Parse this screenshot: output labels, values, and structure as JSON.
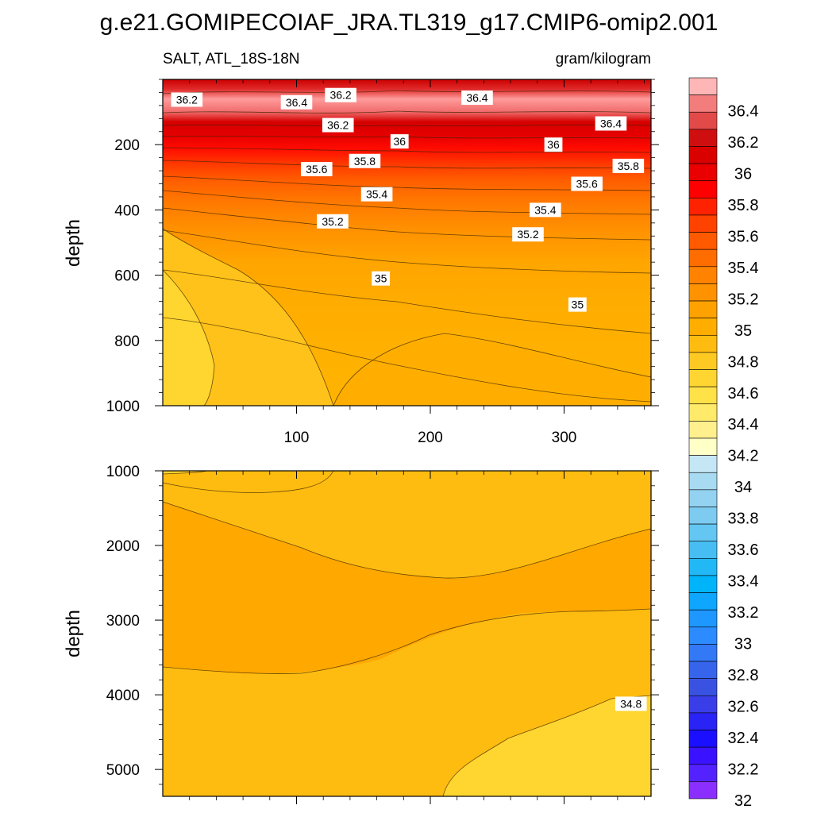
{
  "figure_title": "g.e21.GOMIPECOIAF_JRA.TL319_g17.CMIP6-omip2.001",
  "chart_data": [
    {
      "type": "contour",
      "panel": "upper",
      "title": "g.e21.GOMIPECOIAF_JRA.TL319_g17.CMIP6-omip2.001",
      "left_string": "SALT, ATL_18S-18N",
      "right_string": "gram/kilogram",
      "xlabel": "",
      "ylabel": "depth",
      "xlim": [
        0,
        365
      ],
      "ylim": [
        1000,
        0
      ],
      "x_ticks": [
        100,
        200,
        300
      ],
      "y_ticks": [
        200,
        400,
        600,
        800,
        1000
      ],
      "contour_labels": [
        {
          "text": "36.2",
          "x": 18,
          "y": 62
        },
        {
          "text": "36.4",
          "x": 100,
          "y": 70
        },
        {
          "text": "36.2",
          "x": 133,
          "y": 48
        },
        {
          "text": "36.4",
          "x": 235,
          "y": 56
        },
        {
          "text": "36.4",
          "x": 335,
          "y": 135
        },
        {
          "text": "36.2",
          "x": 131,
          "y": 140
        },
        {
          "text": "36",
          "x": 177,
          "y": 190
        },
        {
          "text": "36",
          "x": 292,
          "y": 200
        },
        {
          "text": "35.8",
          "x": 151,
          "y": 250
        },
        {
          "text": "35.8",
          "x": 348,
          "y": 265
        },
        {
          "text": "35.6",
          "x": 115,
          "y": 275
        },
        {
          "text": "35.6",
          "x": 317,
          "y": 320
        },
        {
          "text": "35.4",
          "x": 160,
          "y": 352
        },
        {
          "text": "35.4",
          "x": 286,
          "y": 400
        },
        {
          "text": "35.2",
          "x": 127,
          "y": 435
        },
        {
          "text": "35.2",
          "x": 273,
          "y": 475
        },
        {
          "text": "35",
          "x": 163,
          "y": 610
        },
        {
          "text": "35",
          "x": 310,
          "y": 690
        }
      ],
      "salinity_rows": [
        {
          "depth": 0,
          "values": [
            36.3,
            36.4,
            36.5,
            36.4,
            36.4
          ]
        },
        {
          "depth": 100,
          "values": [
            36.2,
            36.2,
            36.2,
            36.2,
            36.2
          ]
        },
        {
          "depth": 200,
          "values": [
            35.9,
            36.0,
            36.0,
            36.0,
            36.0
          ]
        },
        {
          "depth": 300,
          "values": [
            35.5,
            35.6,
            35.7,
            35.7,
            35.7
          ]
        },
        {
          "depth": 400,
          "values": [
            35.2,
            35.3,
            35.4,
            35.4,
            35.5
          ]
        },
        {
          "depth": 500,
          "values": [
            34.9,
            35.1,
            35.2,
            35.3,
            35.3
          ]
        },
        {
          "depth": 600,
          "values": [
            34.7,
            34.9,
            35.0,
            35.1,
            35.2
          ]
        },
        {
          "depth": 800,
          "values": [
            34.6,
            34.8,
            34.9,
            34.9,
            35.0
          ]
        },
        {
          "depth": 1000,
          "values": [
            34.6,
            34.7,
            34.8,
            34.8,
            34.8
          ]
        }
      ]
    },
    {
      "type": "contour",
      "panel": "lower",
      "xlabel": "",
      "ylabel": "depth",
      "xlim": [
        0,
        365
      ],
      "ylim": [
        5360,
        1000
      ],
      "y_ticks": [
        1000,
        2000,
        3000,
        4000,
        5000
      ],
      "contour_labels": [
        {
          "text": "34.8",
          "x": 350,
          "y": 4120
        }
      ],
      "regions": [
        {
          "range": "34.8-35.0",
          "depth_from": 1600,
          "depth_to": 3700
        },
        {
          "range": "34.6-34.8",
          "depth_from": 3700,
          "depth_to": 5360
        }
      ]
    }
  ],
  "colorbar": {
    "labels": [
      "36.4",
      "36.2",
      "36",
      "35.8",
      "35.6",
      "35.4",
      "35.2",
      "35",
      "34.8",
      "34.6",
      "34.4",
      "34.2",
      "34",
      "33.8",
      "33.6",
      "33.4",
      "33.2",
      "33",
      "32.8",
      "32.6",
      "32.4",
      "32.2",
      "32"
    ],
    "colors": [
      "#ffb6b6",
      "#f37c7c",
      "#e24a4a",
      "#cf0f0f",
      "#db0000",
      "#ea0000",
      "#ff0000",
      "#ff2200",
      "#ff4200",
      "#ff5a00",
      "#ff6d00",
      "#ff8300",
      "#ff9200",
      "#ffa200",
      "#ffae00",
      "#ffbc10",
      "#ffc923",
      "#ffd631",
      "#ffe148",
      "#ffea6a",
      "#ffef8d",
      "#ffffc8",
      "#c5e7f5",
      "#a8daf1",
      "#93d2f0",
      "#7dcbf0",
      "#64c6f2",
      "#46bef4",
      "#22b8f6",
      "#00b4fa",
      "#0ea6ff",
      "#1e97ff",
      "#2b8bff",
      "#3378f5",
      "#3665ec",
      "#3a52e2",
      "#3a3ee8",
      "#2a23f5",
      "#1a10ff",
      "#3a12ff",
      "#5422ff",
      "#8a2fff"
    ]
  }
}
